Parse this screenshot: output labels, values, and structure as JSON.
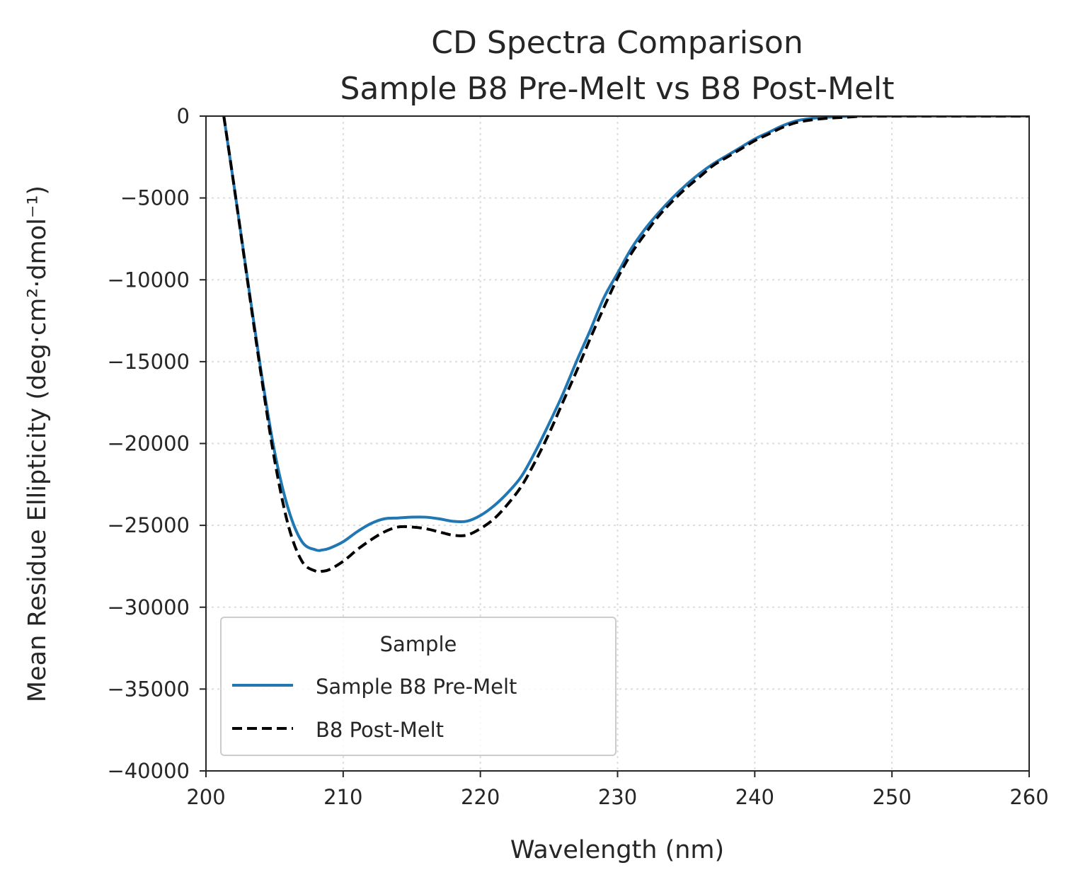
{
  "chart_data": {
    "type": "line",
    "title_line1": "CD Spectra Comparison",
    "title_line2": "Sample B8 Pre-Melt vs B8 Post-Melt",
    "xlabel": "Wavelength (nm)",
    "ylabel": "Mean Residue Ellipticity (deg·cm²·dmol⁻¹)",
    "xlim": [
      200,
      260
    ],
    "ylim": [
      -40000,
      0
    ],
    "xticks": [
      200,
      210,
      220,
      230,
      240,
      250,
      260
    ],
    "xtick_labels": [
      "200",
      "210",
      "220",
      "230",
      "240",
      "250",
      "260"
    ],
    "yticks": [
      0,
      -5000,
      -10000,
      -15000,
      -20000,
      -25000,
      -30000,
      -35000,
      -40000
    ],
    "ytick_labels": [
      "0",
      "−5000",
      "−10000",
      "−15000",
      "−20000",
      "−25000",
      "−30000",
      "−35000",
      "−40000"
    ],
    "grid": true,
    "legend": {
      "title": "Sample",
      "placement": "lower-left"
    },
    "series": [
      {
        "name": "Sample B8 Pre-Melt",
        "color": "#1f77b4",
        "style": "solid",
        "x": [
          201.3,
          202,
          203,
          204,
          205,
          206,
          207,
          208,
          208.5,
          209,
          210,
          211,
          212,
          213,
          214,
          215,
          216,
          217,
          218,
          219,
          220,
          221,
          222,
          223,
          224,
          225,
          226,
          227,
          228,
          229,
          230,
          231,
          232,
          233,
          234,
          235,
          236,
          237,
          238,
          239,
          240,
          241,
          242,
          243,
          244,
          245,
          246,
          247,
          248,
          250,
          255,
          260
        ],
        "y": [
          0,
          -4000,
          -9800,
          -15500,
          -20500,
          -24000,
          -26000,
          -26500,
          -26500,
          -26400,
          -26000,
          -25400,
          -24900,
          -24600,
          -24550,
          -24500,
          -24500,
          -24600,
          -24750,
          -24750,
          -24400,
          -23800,
          -23000,
          -22000,
          -20500,
          -18800,
          -17000,
          -15000,
          -13100,
          -11100,
          -9600,
          -8100,
          -6900,
          -5900,
          -5000,
          -4200,
          -3500,
          -2900,
          -2400,
          -1900,
          -1400,
          -1000,
          -600,
          -300,
          -150,
          -80,
          -40,
          -15,
          0,
          0,
          0,
          0
        ]
      },
      {
        "name": "B8 Post-Melt",
        "color": "#000000",
        "style": "dashed",
        "x": [
          201.3,
          202,
          203,
          204,
          205,
          206,
          207,
          208,
          208.5,
          209,
          210,
          211,
          212,
          213,
          214,
          215,
          216,
          217,
          218,
          219,
          220,
          221,
          222,
          223,
          224,
          225,
          226,
          227,
          228,
          229,
          230,
          231,
          232,
          233,
          234,
          235,
          236,
          237,
          238,
          239,
          240,
          241,
          242,
          243,
          244,
          245,
          246,
          247,
          248,
          250,
          255,
          260
        ],
        "y": [
          0,
          -4000,
          -9900,
          -15700,
          -21000,
          -25000,
          -27200,
          -27800,
          -27800,
          -27700,
          -27200,
          -26500,
          -25900,
          -25400,
          -25100,
          -25100,
          -25200,
          -25400,
          -25600,
          -25600,
          -25200,
          -24600,
          -23700,
          -22600,
          -21100,
          -19400,
          -17500,
          -15600,
          -13600,
          -11700,
          -9900,
          -8400,
          -7200,
          -6100,
          -5200,
          -4400,
          -3700,
          -3000,
          -2500,
          -2000,
          -1500,
          -1100,
          -700,
          -400,
          -250,
          -150,
          -100,
          -50,
          0,
          0,
          0,
          0
        ]
      }
    ]
  }
}
